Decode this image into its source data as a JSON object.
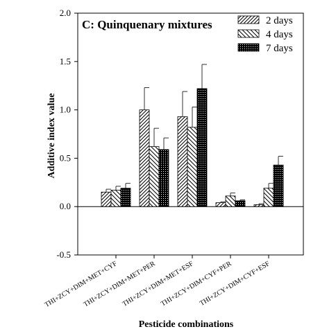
{
  "chart_data": {
    "type": "bar",
    "title": "C: Quinquenary mixtures",
    "xlabel": "Pesticide combinations",
    "ylabel": "Additive index value",
    "ylim": [
      -0.5,
      2.0
    ],
    "yticks": [
      "-0.5",
      "0.0",
      "0.5",
      "1.0",
      "1.5",
      "2.0"
    ],
    "grid": false,
    "legend_position": "top-right",
    "categories": [
      "THI+ZCY+DIM+MET+CYF",
      "THI+ZCY+DIM+MET+PER",
      "THI+ZCY+DIM+MET+ESF",
      "THI+ZCY+DIM+CYF+PER",
      "THI+ZCY+DIM+CYF+ESF"
    ],
    "series": [
      {
        "name": "2 days",
        "pattern": "hatch-forward",
        "values": [
          0.15,
          1.0,
          0.93,
          0.04,
          0.02
        ],
        "errors": [
          0.03,
          0.23,
          0.26,
          0.01,
          0.01
        ]
      },
      {
        "name": "4 days",
        "pattern": "hatch-back",
        "values": [
          0.17,
          0.62,
          0.82,
          0.11,
          0.19
        ],
        "errors": [
          0.04,
          0.19,
          0.21,
          0.03,
          0.05
        ]
      },
      {
        "name": "7 days",
        "pattern": "dots",
        "values": [
          0.19,
          0.59,
          1.22,
          0.06,
          0.43
        ],
        "errors": [
          0.05,
          0.12,
          0.25,
          0.01,
          0.09
        ]
      }
    ]
  }
}
